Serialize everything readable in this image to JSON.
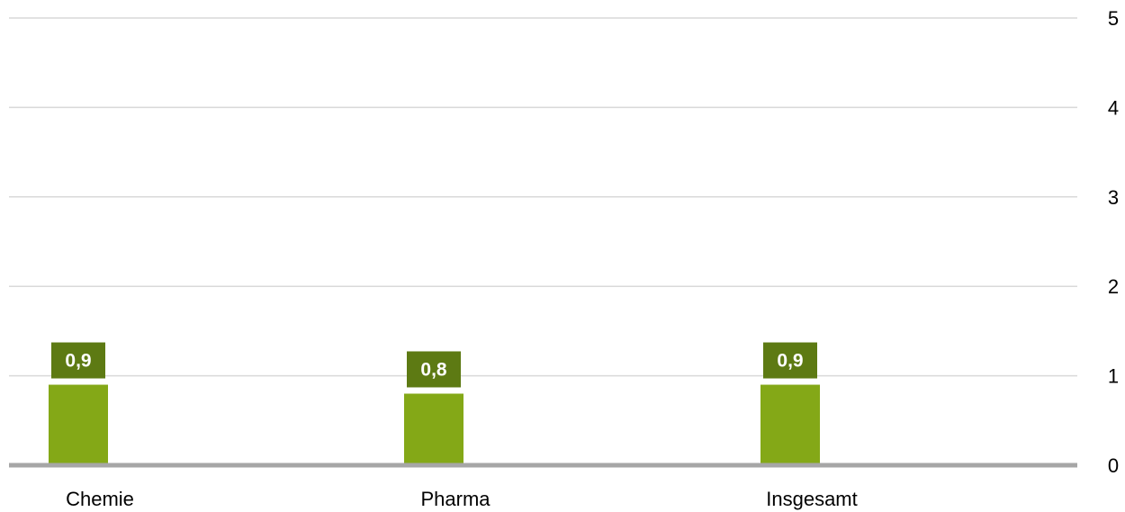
{
  "chart_data": {
    "type": "bar",
    "categories": [
      "Chemie",
      "Pharma",
      "Insgesamt"
    ],
    "series": [
      {
        "values": [
          0.9,
          0.8,
          0.9
        ],
        "labels": [
          "0,9",
          "0,8",
          "0,9"
        ]
      }
    ],
    "title": "",
    "xlabel": "",
    "ylabel": "",
    "ylim": [
      0,
      5
    ],
    "yticks": [
      "0",
      "1",
      "2",
      "3",
      "4",
      "5"
    ],
    "y_axis_side": "right",
    "grid": true,
    "legend": "none",
    "colors": {
      "bar": "#84a817",
      "label_bg": "#5d7a13",
      "label_text": "#ffffff",
      "grid": "#d9d9d9",
      "baseline": "#a6a6a6",
      "tick_text": "#000000"
    }
  }
}
